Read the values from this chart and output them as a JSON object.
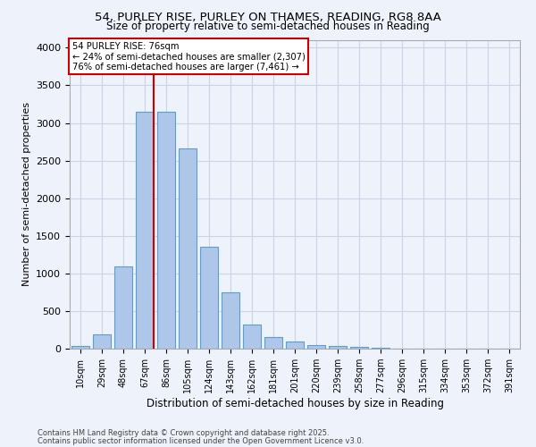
{
  "title_line1": "54, PURLEY RISE, PURLEY ON THAMES, READING, RG8 8AA",
  "title_line2": "Size of property relative to semi-detached houses in Reading",
  "xlabel": "Distribution of semi-detached houses by size in Reading",
  "ylabel": "Number of semi-detached properties",
  "footnote1": "Contains HM Land Registry data © Crown copyright and database right 2025.",
  "footnote2": "Contains public sector information licensed under the Open Government Licence v3.0.",
  "bar_labels": [
    "10sqm",
    "29sqm",
    "48sqm",
    "67sqm",
    "86sqm",
    "105sqm",
    "124sqm",
    "143sqm",
    "162sqm",
    "181sqm",
    "201sqm",
    "220sqm",
    "239sqm",
    "258sqm",
    "277sqm",
    "296sqm",
    "315sqm",
    "334sqm",
    "353sqm",
    "372sqm",
    "391sqm"
  ],
  "bar_values": [
    30,
    190,
    1090,
    3150,
    3150,
    2660,
    1350,
    750,
    320,
    160,
    90,
    45,
    35,
    25,
    8,
    2,
    0,
    0,
    0,
    0,
    0
  ],
  "bar_color": "#aec6e8",
  "bar_edge_color": "#5a9fd4",
  "grid_color": "#c8d4e8",
  "background_color": "#eef2fa",
  "annotation_title": "54 PURLEY RISE: 76sqm",
  "annotation_line1": "← 24% of semi-detached houses are smaller (2,307)",
  "annotation_line2": "76% of semi-detached houses are larger (7,461) →",
  "annotation_box_color": "#ffffff",
  "annotation_box_edge": "#cc0000",
  "red_line_bar_index": 3,
  "ylim": [
    0,
    4100
  ],
  "yticks": [
    0,
    500,
    1000,
    1500,
    2000,
    2500,
    3000,
    3500,
    4000
  ]
}
